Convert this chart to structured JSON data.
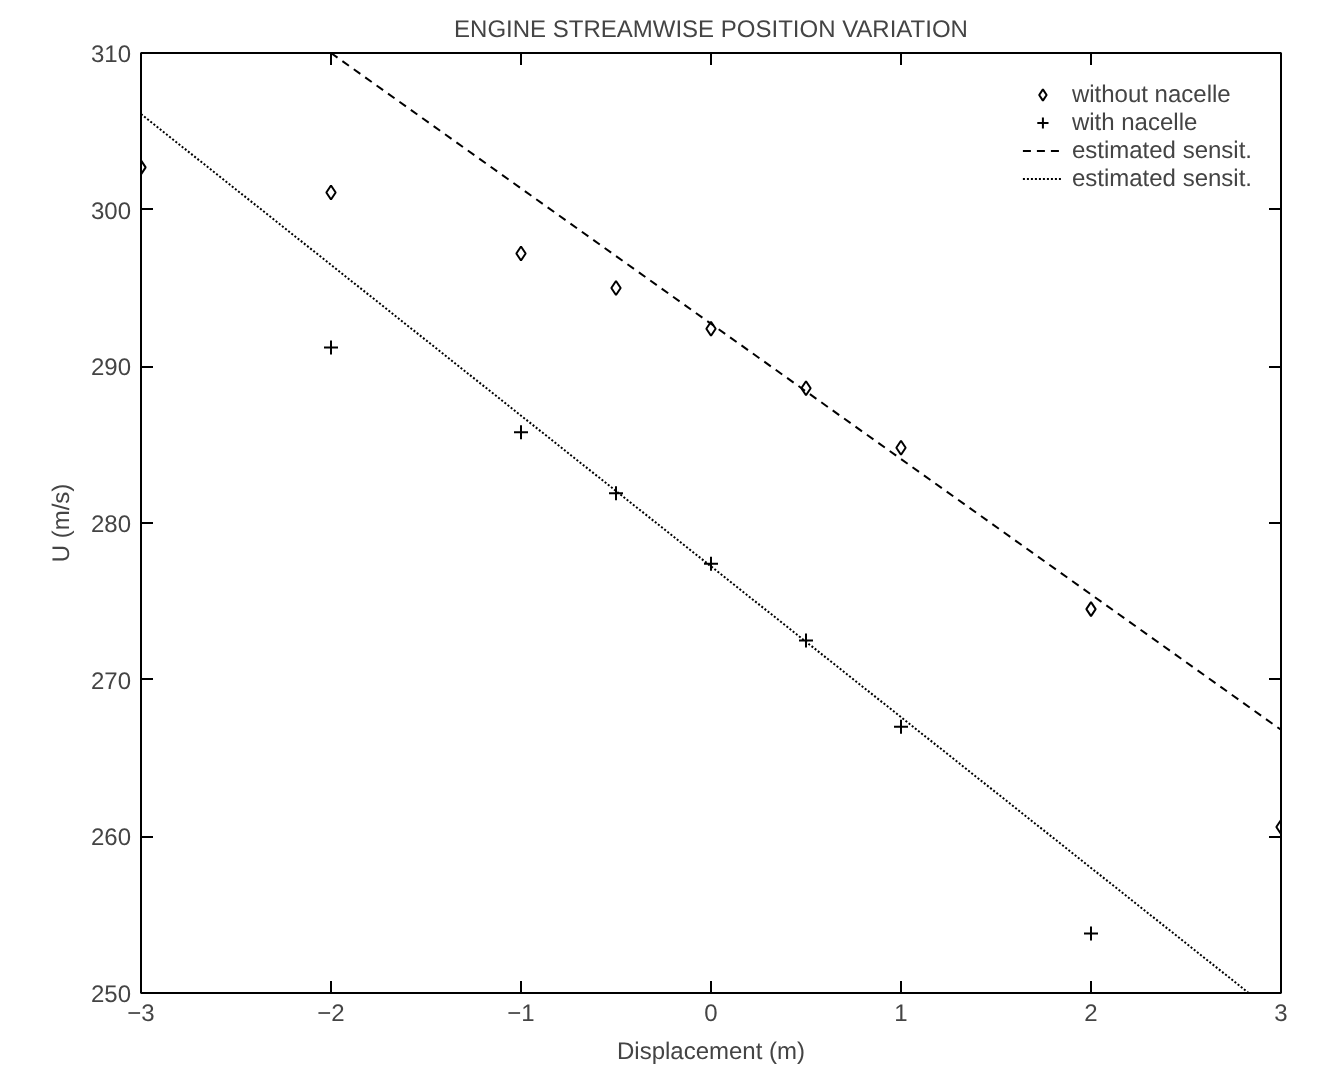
{
  "chart_data": {
    "type": "scatter",
    "title": "ENGINE STREAMWISE POSITION VARIATION",
    "xlabel": "Displacement (m)",
    "ylabel": "U (m/s)",
    "xlim": [
      -3,
      3
    ],
    "ylim": [
      250,
      310
    ],
    "xticks": [
      -3,
      -2,
      -1,
      0,
      1,
      2,
      3
    ],
    "yticks": [
      250,
      260,
      270,
      280,
      290,
      300,
      310
    ],
    "grid": false,
    "legend": "top right",
    "series": [
      {
        "name": "without nacelle",
        "marker": "diamond",
        "color": "#000000",
        "x": [
          -3,
          -2,
          -1,
          -0.5,
          0,
          0.5,
          1,
          2,
          3
        ],
        "values": [
          302.7,
          301.1,
          297.2,
          295.0,
          292.4,
          288.6,
          284.8,
          274.5,
          260.6
        ]
      },
      {
        "name": "with nacelle",
        "marker": "cross",
        "color": "#000000",
        "x": [
          -2,
          -1,
          -0.5,
          0,
          0.5,
          1,
          2
        ],
        "values": [
          291.2,
          285.8,
          281.9,
          277.4,
          272.5,
          267.0,
          253.8
        ]
      },
      {
        "name": "estimated sensit.",
        "type": "line",
        "line_style": "dashed",
        "color": "#000000",
        "x": [
          -2,
          3
        ],
        "values": [
          310,
          266.8
        ]
      },
      {
        "name": "estimated sensit.",
        "type": "line",
        "line_style": "dotted",
        "color": "#000000",
        "x": [
          -3,
          2.83
        ],
        "values": [
          306.1,
          250
        ]
      }
    ]
  }
}
